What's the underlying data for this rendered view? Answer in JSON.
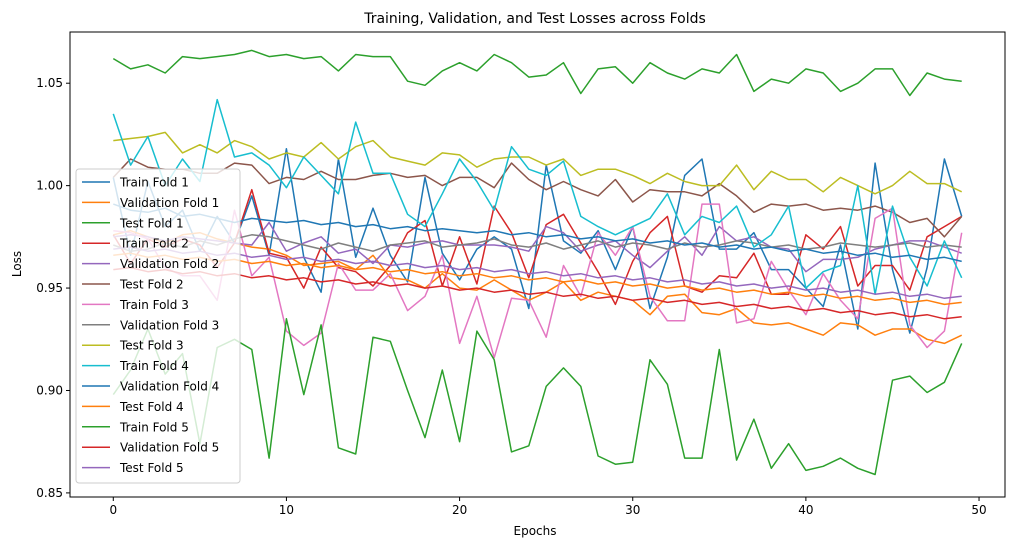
{
  "chart_data": {
    "type": "line",
    "title": "Training, Validation, and Test Losses across Folds",
    "xlabel": "Epochs",
    "ylabel": "Loss",
    "xlim": [
      -2.5,
      51.5
    ],
    "ylim": [
      0.848,
      1.075
    ],
    "xticks": [
      0,
      10,
      20,
      30,
      40,
      50
    ],
    "yticks": [
      0.85,
      0.9,
      0.95,
      1.0,
      1.05
    ],
    "grid": false,
    "legend_position": "left",
    "x": [
      0,
      1,
      2,
      3,
      4,
      5,
      6,
      7,
      8,
      9,
      10,
      11,
      12,
      13,
      14,
      15,
      16,
      17,
      18,
      19,
      20,
      21,
      22,
      23,
      24,
      25,
      26,
      27,
      28,
      29,
      30,
      31,
      32,
      33,
      34,
      35,
      36,
      37,
      38,
      39,
      40,
      41,
      42,
      43,
      44,
      45,
      46,
      47,
      48,
      49
    ],
    "series": [
      {
        "name": "Train Fold 1",
        "color": "#1f77b4",
        "values": [
          1.004,
          0.966,
          1.002,
          0.98,
          0.988,
          0.968,
          0.985,
          0.972,
          0.995,
          0.966,
          1.018,
          0.965,
          0.948,
          1.013,
          0.965,
          0.989,
          0.966,
          0.953,
          1.004,
          0.967,
          0.954,
          0.969,
          0.975,
          0.969,
          0.94,
          1.01,
          0.973,
          0.967,
          0.978,
          0.959,
          0.98,
          0.94,
          0.965,
          1.005,
          1.013,
          0.969,
          0.969,
          0.977,
          0.959,
          0.959,
          0.95,
          0.941,
          0.971,
          0.93,
          1.011,
          0.959,
          0.928,
          0.96,
          1.013,
          0.985
        ]
      },
      {
        "name": "Validation Fold 1",
        "color": "#ff7f0e",
        "values": [
          0.976,
          0.978,
          0.975,
          0.972,
          0.976,
          0.977,
          0.974,
          0.972,
          0.97,
          0.969,
          0.966,
          0.961,
          0.962,
          0.963,
          0.959,
          0.966,
          0.955,
          0.954,
          0.95,
          0.957,
          0.95,
          0.949,
          0.954,
          0.949,
          0.944,
          0.948,
          0.953,
          0.944,
          0.948,
          0.946,
          0.944,
          0.937,
          0.946,
          0.947,
          0.938,
          0.937,
          0.94,
          0.933,
          0.932,
          0.933,
          0.93,
          0.927,
          0.933,
          0.932,
          0.927,
          0.93,
          0.93,
          0.925,
          0.923,
          0.927
        ]
      },
      {
        "name": "Test Fold 1",
        "color": "#2ca02c",
        "values": [
          1.062,
          1.057,
          1.059,
          1.055,
          1.063,
          1.062,
          1.063,
          1.064,
          1.066,
          1.063,
          1.064,
          1.062,
          1.063,
          1.056,
          1.064,
          1.063,
          1.063,
          1.051,
          1.049,
          1.056,
          1.06,
          1.056,
          1.064,
          1.06,
          1.053,
          1.054,
          1.06,
          1.045,
          1.057,
          1.058,
          1.05,
          1.06,
          1.055,
          1.052,
          1.057,
          1.055,
          1.064,
          1.046,
          1.052,
          1.05,
          1.057,
          1.055,
          1.046,
          1.05,
          1.057,
          1.057,
          1.044,
          1.055,
          1.052,
          1.051
        ]
      },
      {
        "name": "Train Fold 2",
        "color": "#d62728",
        "values": [
          0.976,
          0.962,
          0.974,
          0.97,
          0.974,
          0.971,
          0.96,
          0.972,
          0.998,
          0.967,
          0.965,
          0.95,
          0.97,
          0.96,
          0.958,
          0.951,
          0.961,
          0.977,
          0.983,
          0.951,
          0.975,
          0.952,
          0.99,
          0.977,
          0.955,
          0.981,
          0.986,
          0.972,
          0.958,
          0.942,
          0.963,
          0.977,
          0.985,
          0.951,
          0.948,
          0.956,
          0.955,
          0.967,
          0.947,
          0.947,
          0.976,
          0.969,
          0.98,
          0.951,
          0.961,
          0.961,
          0.949,
          0.975,
          0.98,
          0.985
        ]
      },
      {
        "name": "Validation Fold 2",
        "color": "#9467bd",
        "values": [
          0.975,
          0.976,
          0.975,
          0.973,
          0.975,
          0.974,
          0.973,
          0.972,
          0.971,
          0.982,
          0.968,
          0.972,
          0.975,
          0.967,
          0.969,
          0.962,
          0.971,
          0.97,
          0.972,
          0.973,
          0.971,
          0.971,
          0.971,
          0.97,
          0.968,
          0.98,
          0.977,
          0.968,
          0.971,
          0.973,
          0.966,
          0.96,
          0.968,
          0.975,
          0.966,
          0.98,
          0.973,
          0.975,
          0.97,
          0.969,
          0.958,
          0.964,
          0.964,
          0.965,
          0.969,
          0.971,
          0.973,
          0.973,
          0.97,
          0.967
        ]
      },
      {
        "name": "Test Fold 2",
        "color": "#8c564b",
        "values": [
          1.004,
          1.013,
          1.009,
          1.008,
          1.008,
          1.006,
          1.006,
          1.011,
          1.01,
          1.001,
          1.004,
          1.003,
          1.007,
          1.003,
          1.003,
          1.005,
          1.006,
          1.004,
          1.005,
          1.0,
          1.004,
          1.004,
          0.999,
          1.011,
          1.003,
          0.998,
          1.002,
          0.998,
          0.995,
          1.003,
          0.992,
          0.998,
          0.997,
          0.997,
          0.995,
          1.001,
          0.995,
          0.987,
          0.991,
          0.99,
          0.991,
          0.988,
          0.989,
          0.988,
          0.99,
          0.987,
          0.982,
          0.984,
          0.975,
          0.985
        ]
      },
      {
        "name": "Train Fold 3",
        "color": "#e377c2",
        "values": [
          0.978,
          0.977,
          0.974,
          0.96,
          0.956,
          0.956,
          0.944,
          0.988,
          0.956,
          0.965,
          0.929,
          0.922,
          0.928,
          0.962,
          0.949,
          0.949,
          0.957,
          0.939,
          0.946,
          0.966,
          0.923,
          0.946,
          0.916,
          0.945,
          0.944,
          0.926,
          0.961,
          0.946,
          0.977,
          0.966,
          0.98,
          0.946,
          0.934,
          0.934,
          0.991,
          0.991,
          0.933,
          0.935,
          0.963,
          0.949,
          0.937,
          0.957,
          0.944,
          0.935,
          0.984,
          0.989,
          0.932,
          0.921,
          0.929,
          0.977
        ]
      },
      {
        "name": "Validation Fold 3",
        "color": "#7f7f7f",
        "values": [
          0.971,
          0.968,
          0.969,
          0.972,
          0.97,
          0.973,
          0.971,
          0.974,
          0.976,
          0.975,
          0.973,
          0.971,
          0.969,
          0.972,
          0.97,
          0.968,
          0.971,
          0.972,
          0.973,
          0.97,
          0.971,
          0.972,
          0.974,
          0.971,
          0.97,
          0.972,
          0.969,
          0.971,
          0.973,
          0.97,
          0.972,
          0.971,
          0.969,
          0.972,
          0.97,
          0.971,
          0.973,
          0.972,
          0.97,
          0.971,
          0.969,
          0.97,
          0.972,
          0.971,
          0.97,
          0.971,
          0.972,
          0.97,
          0.971,
          0.97
        ]
      },
      {
        "name": "Test Fold 3",
        "color": "#bcbd22",
        "values": [
          1.022,
          1.023,
          1.024,
          1.026,
          1.016,
          1.02,
          1.016,
          1.022,
          1.019,
          1.013,
          1.016,
          1.014,
          1.021,
          1.013,
          1.019,
          1.022,
          1.014,
          1.012,
          1.01,
          1.016,
          1.015,
          1.009,
          1.013,
          1.014,
          1.014,
          1.01,
          1.013,
          1.005,
          1.008,
          1.008,
          1.005,
          1.001,
          1.006,
          1.002,
          1.0,
          1.0,
          1.01,
          0.998,
          1.007,
          1.003,
          1.003,
          0.997,
          1.004,
          1.0,
          0.996,
          1.0,
          1.007,
          1.001,
          1.001,
          0.997
        ]
      },
      {
        "name": "Train Fold 4",
        "color": "#17becf",
        "values": [
          1.035,
          1.01,
          1.024,
          1.0,
          1.013,
          1.002,
          1.042,
          1.014,
          1.016,
          1.01,
          0.999,
          1.014,
          1.005,
          0.996,
          1.031,
          1.006,
          1.006,
          0.986,
          0.98,
          0.996,
          1.013,
          1.002,
          0.988,
          1.019,
          1.008,
          1.005,
          1.012,
          0.985,
          0.98,
          0.976,
          0.98,
          0.984,
          0.996,
          0.976,
          0.985,
          0.982,
          0.99,
          0.97,
          0.976,
          0.99,
          0.95,
          0.958,
          0.961,
          1.0,
          0.947,
          0.99,
          0.965,
          0.951,
          0.973,
          0.955
        ]
      },
      {
        "name": "Validation Fold 4",
        "color": "#1f77b4",
        "values": [
          0.991,
          0.988,
          0.987,
          0.989,
          0.985,
          0.986,
          0.984,
          0.982,
          0.984,
          0.983,
          0.982,
          0.983,
          0.981,
          0.982,
          0.98,
          0.981,
          0.979,
          0.98,
          0.978,
          0.979,
          0.978,
          0.977,
          0.978,
          0.976,
          0.977,
          0.975,
          0.976,
          0.974,
          0.975,
          0.973,
          0.974,
          0.972,
          0.973,
          0.971,
          0.972,
          0.97,
          0.971,
          0.969,
          0.97,
          0.968,
          0.969,
          0.967,
          0.968,
          0.966,
          0.967,
          0.965,
          0.966,
          0.964,
          0.965,
          0.963
        ]
      },
      {
        "name": "Test Fold 4",
        "color": "#ff7f0e",
        "values": [
          0.966,
          0.967,
          0.965,
          0.966,
          0.964,
          0.965,
          0.963,
          0.964,
          0.962,
          0.963,
          0.961,
          0.962,
          0.96,
          0.961,
          0.959,
          0.96,
          0.958,
          0.959,
          0.957,
          0.958,
          0.956,
          0.957,
          0.955,
          0.956,
          0.954,
          0.955,
          0.953,
          0.954,
          0.952,
          0.953,
          0.951,
          0.952,
          0.95,
          0.951,
          0.949,
          0.95,
          0.948,
          0.949,
          0.947,
          0.948,
          0.946,
          0.947,
          0.945,
          0.946,
          0.944,
          0.945,
          0.943,
          0.944,
          0.942,
          0.943
        ]
      },
      {
        "name": "Train Fold 5",
        "color": "#2ca02c",
        "values": [
          0.898,
          0.91,
          0.93,
          0.908,
          0.918,
          0.874,
          0.921,
          0.925,
          0.92,
          0.867,
          0.935,
          0.898,
          0.932,
          0.872,
          0.869,
          0.926,
          0.924,
          0.9,
          0.877,
          0.91,
          0.875,
          0.929,
          0.915,
          0.87,
          0.873,
          0.902,
          0.911,
          0.902,
          0.868,
          0.864,
          0.865,
          0.915,
          0.903,
          0.867,
          0.867,
          0.92,
          0.866,
          0.886,
          0.862,
          0.874,
          0.861,
          0.863,
          0.867,
          0.862,
          0.859,
          0.905,
          0.907,
          0.899,
          0.904,
          0.923
        ]
      },
      {
        "name": "Validation Fold 5",
        "color": "#d62728",
        "values": [
          0.959,
          0.96,
          0.958,
          0.959,
          0.957,
          0.958,
          0.956,
          0.957,
          0.955,
          0.956,
          0.954,
          0.955,
          0.953,
          0.954,
          0.952,
          0.953,
          0.951,
          0.952,
          0.95,
          0.951,
          0.949,
          0.95,
          0.948,
          0.949,
          0.947,
          0.948,
          0.946,
          0.947,
          0.945,
          0.946,
          0.944,
          0.945,
          0.943,
          0.944,
          0.942,
          0.943,
          0.941,
          0.942,
          0.94,
          0.941,
          0.939,
          0.94,
          0.938,
          0.939,
          0.937,
          0.938,
          0.936,
          0.937,
          0.935,
          0.936
        ]
      },
      {
        "name": "Test Fold 5",
        "color": "#9467bd",
        "values": [
          0.969,
          0.97,
          0.968,
          0.969,
          0.967,
          0.968,
          0.966,
          0.967,
          0.965,
          0.966,
          0.964,
          0.965,
          0.963,
          0.964,
          0.962,
          0.963,
          0.961,
          0.962,
          0.96,
          0.961,
          0.959,
          0.96,
          0.958,
          0.959,
          0.957,
          0.958,
          0.956,
          0.957,
          0.955,
          0.956,
          0.954,
          0.955,
          0.953,
          0.954,
          0.952,
          0.953,
          0.951,
          0.952,
          0.95,
          0.951,
          0.949,
          0.95,
          0.948,
          0.949,
          0.947,
          0.948,
          0.946,
          0.947,
          0.945,
          0.946
        ]
      }
    ]
  }
}
